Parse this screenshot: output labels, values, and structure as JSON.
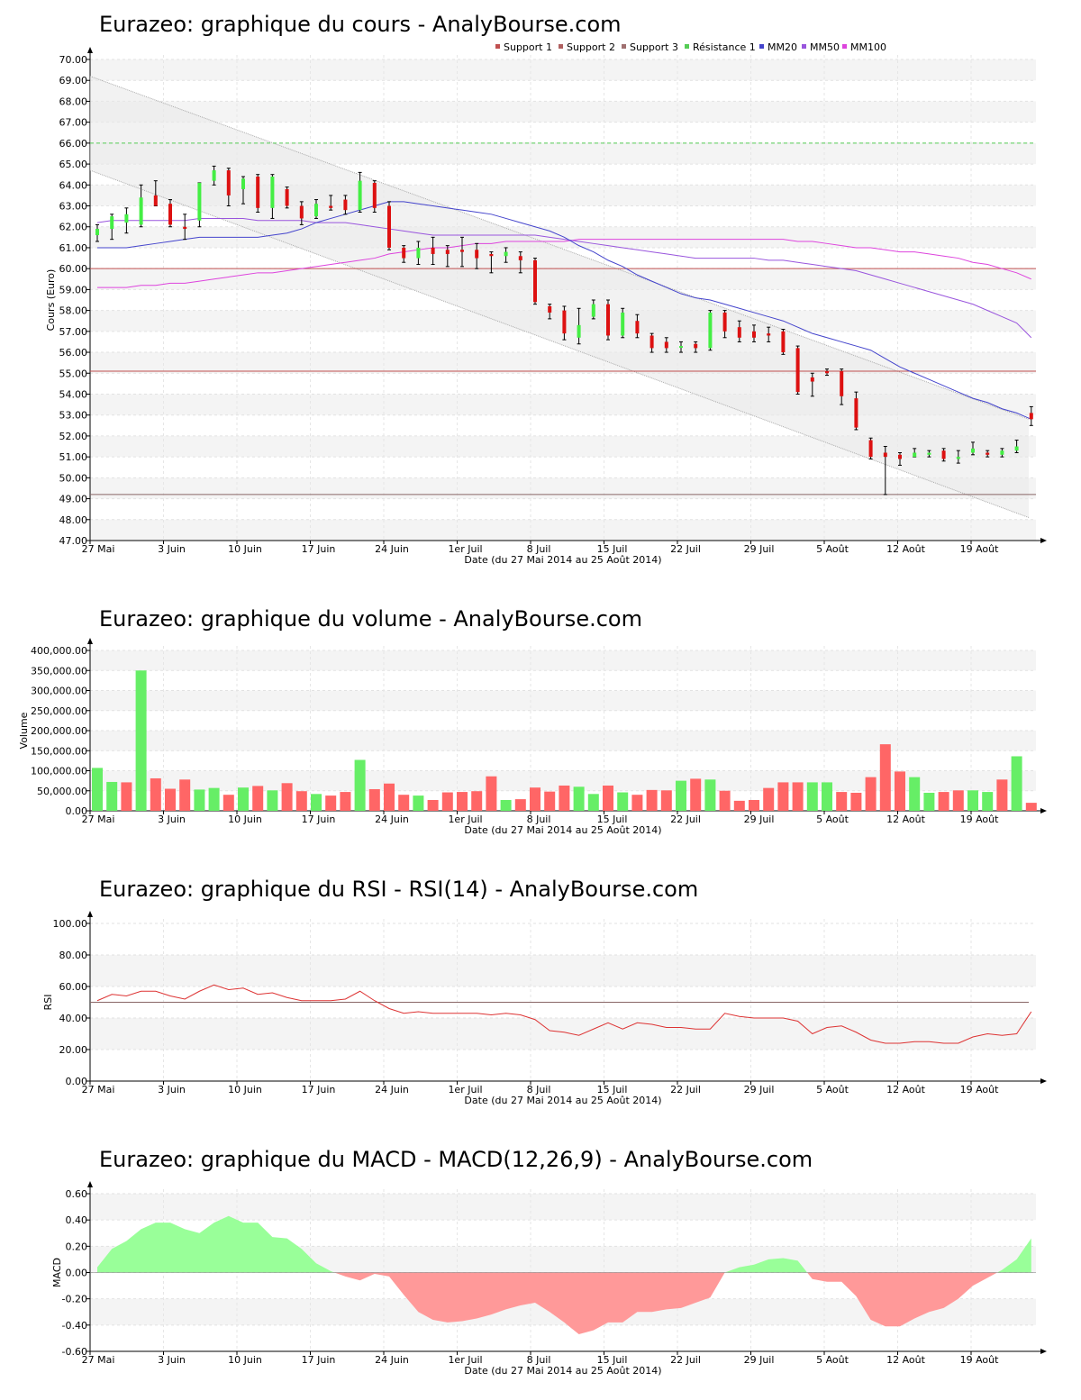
{
  "x_ticks": [
    "27 Mai",
    "3 Juin",
    "10 Juin",
    "17 Juin",
    "24 Juin",
    "1er Juil",
    "8 Juil",
    "15 Juil",
    "22 Juil",
    "29 Juil",
    "5 Août",
    "12 Août",
    "19 Août"
  ],
  "x_axis_label": "Date (du 27 Mai 2014 au 25 Août 2014)",
  "colors": {
    "up": "#44ee44",
    "down": "#dd1111",
    "support": "#c05050",
    "resistance": "#55cc55",
    "mm20": "#4444cc",
    "mm50": "#9955dd",
    "mm100": "#dd44dd",
    "rsi": "#dd3333",
    "macd_pos": "#99ff99",
    "macd_neg": "#ff9999",
    "vol_up": "#66ee66",
    "vol_down": "#ff6666"
  },
  "chart_data": [
    {
      "type": "candlestick",
      "title": "Eurazeo: graphique du cours - AnalyBourse.com",
      "ylabel": "Cours (Euro)",
      "ylim": [
        47,
        70
      ],
      "legend_position": "top-right",
      "legend": [
        "Support 1",
        "Support 2",
        "Support 3",
        "Résistance 1",
        "MM20",
        "MM50",
        "MM100"
      ],
      "levels": {
        "support_1": 60.0,
        "support_2": 55.1,
        "support_3": 49.2,
        "resistance_1": 66.0
      },
      "ohlc": [
        [
          61.6,
          61.9,
          61.3,
          62.1
        ],
        [
          61.9,
          62.5,
          61.4,
          62.6
        ],
        [
          62.2,
          62.6,
          61.7,
          62.9
        ],
        [
          62.1,
          63.4,
          62.0,
          64.0
        ],
        [
          63.5,
          63.0,
          63.0,
          64.2
        ],
        [
          63.1,
          62.1,
          62.0,
          63.3
        ],
        [
          62.0,
          61.9,
          61.4,
          62.6
        ],
        [
          62.3,
          64.1,
          62.0,
          64.1
        ],
        [
          64.2,
          64.7,
          64.0,
          64.9
        ],
        [
          64.7,
          63.5,
          63.0,
          64.8
        ],
        [
          63.8,
          64.3,
          63.1,
          64.4
        ],
        [
          64.4,
          62.9,
          62.7,
          64.5
        ],
        [
          62.9,
          64.4,
          62.4,
          64.5
        ],
        [
          63.8,
          63.0,
          62.9,
          63.9
        ],
        [
          63.0,
          62.4,
          62.1,
          63.2
        ],
        [
          62.5,
          63.1,
          62.4,
          63.3
        ],
        [
          63.0,
          62.9,
          62.8,
          63.5
        ],
        [
          63.3,
          62.8,
          62.6,
          63.5
        ],
        [
          62.8,
          64.2,
          62.7,
          64.6
        ],
        [
          64.1,
          62.9,
          62.7,
          64.2
        ],
        [
          63.0,
          61.0,
          60.9,
          63.2
        ],
        [
          61.0,
          60.5,
          60.3,
          61.1
        ],
        [
          60.5,
          61.0,
          60.2,
          61.3
        ],
        [
          61.0,
          60.7,
          60.2,
          61.5
        ],
        [
          60.9,
          60.7,
          60.1,
          61.1
        ],
        [
          60.9,
          60.8,
          60.1,
          61.5
        ],
        [
          60.9,
          60.5,
          60.0,
          61.2
        ],
        [
          60.7,
          60.6,
          59.8,
          60.8
        ],
        [
          60.6,
          60.8,
          60.3,
          61.0
        ],
        [
          60.6,
          60.4,
          59.8,
          60.8
        ],
        [
          60.4,
          58.4,
          58.3,
          60.5
        ],
        [
          58.2,
          57.9,
          57.6,
          58.3
        ],
        [
          58.0,
          56.9,
          56.6,
          58.2
        ],
        [
          56.7,
          57.3,
          56.4,
          58.1
        ],
        [
          57.7,
          58.3,
          57.6,
          58.5
        ],
        [
          58.3,
          56.8,
          56.6,
          58.5
        ],
        [
          56.8,
          57.9,
          56.7,
          58.1
        ],
        [
          57.5,
          56.9,
          56.7,
          57.8
        ],
        [
          56.8,
          56.2,
          56.0,
          56.9
        ],
        [
          56.5,
          56.2,
          56.0,
          56.7
        ],
        [
          56.3,
          56.3,
          56.0,
          56.5
        ],
        [
          56.4,
          56.2,
          56.0,
          56.5
        ],
        [
          56.2,
          57.9,
          56.1,
          58.0
        ],
        [
          57.9,
          57.0,
          56.7,
          58.0
        ],
        [
          57.2,
          56.7,
          56.5,
          57.5
        ],
        [
          57.0,
          56.7,
          56.5,
          57.3
        ],
        [
          56.9,
          56.8,
          56.5,
          57.2
        ],
        [
          57.0,
          56.0,
          55.9,
          57.1
        ],
        [
          56.2,
          54.1,
          54.0,
          56.3
        ],
        [
          54.8,
          54.6,
          53.9,
          55.0
        ],
        [
          55.1,
          55.0,
          54.9,
          55.2
        ],
        [
          55.1,
          53.9,
          53.5,
          55.2
        ],
        [
          53.8,
          52.4,
          52.3,
          54.1
        ],
        [
          51.8,
          51.0,
          50.9,
          51.9
        ],
        [
          51.2,
          51.0,
          49.2,
          51.5
        ],
        [
          51.1,
          50.9,
          50.6,
          51.2
        ],
        [
          51.0,
          51.2,
          51.0,
          51.4
        ],
        [
          51.1,
          51.2,
          51.0,
          51.3
        ],
        [
          51.3,
          50.9,
          50.8,
          51.4
        ],
        [
          50.9,
          51.0,
          50.7,
          51.3
        ],
        [
          51.2,
          51.4,
          51.1,
          51.7
        ],
        [
          51.2,
          51.1,
          51.0,
          51.3
        ],
        [
          51.1,
          51.3,
          51.0,
          51.4
        ],
        [
          51.3,
          51.5,
          51.2,
          51.8
        ],
        [
          53.1,
          52.8,
          52.5,
          53.4
        ]
      ],
      "mm20": [
        61.0,
        61.0,
        61.0,
        61.1,
        61.2,
        61.3,
        61.4,
        61.5,
        61.5,
        61.5,
        61.5,
        61.5,
        61.6,
        61.7,
        61.9,
        62.2,
        62.4,
        62.6,
        62.8,
        63.0,
        63.2,
        63.2,
        63.1,
        63.0,
        62.9,
        62.8,
        62.7,
        62.6,
        62.4,
        62.2,
        62.0,
        61.8,
        61.5,
        61.1,
        60.8,
        60.4,
        60.1,
        59.7,
        59.4,
        59.1,
        58.8,
        58.6,
        58.5,
        58.3,
        58.1,
        57.9,
        57.7,
        57.5,
        57.2,
        56.9,
        56.7,
        56.5,
        56.3,
        56.1,
        55.7,
        55.3,
        55.0,
        54.7,
        54.4,
        54.1,
        53.8,
        53.6,
        53.3,
        53.1,
        52.8
      ],
      "mm50": [
        62.2,
        62.3,
        62.3,
        62.3,
        62.3,
        62.3,
        62.3,
        62.4,
        62.4,
        62.4,
        62.4,
        62.3,
        62.3,
        62.3,
        62.3,
        62.2,
        62.2,
        62.2,
        62.1,
        62.0,
        61.9,
        61.8,
        61.7,
        61.6,
        61.6,
        61.6,
        61.6,
        61.6,
        61.6,
        61.6,
        61.6,
        61.5,
        61.4,
        61.3,
        61.2,
        61.1,
        61.0,
        60.9,
        60.8,
        60.7,
        60.6,
        60.5,
        60.5,
        60.5,
        60.5,
        60.5,
        60.4,
        60.4,
        60.3,
        60.2,
        60.1,
        60.0,
        59.9,
        59.7,
        59.5,
        59.3,
        59.1,
        58.9,
        58.7,
        58.5,
        58.3,
        58.0,
        57.7,
        57.4,
        56.7
      ],
      "mm100": [
        59.1,
        59.1,
        59.1,
        59.2,
        59.2,
        59.3,
        59.3,
        59.4,
        59.5,
        59.6,
        59.7,
        59.8,
        59.8,
        59.9,
        60.0,
        60.1,
        60.2,
        60.3,
        60.4,
        60.5,
        60.7,
        60.8,
        60.9,
        61.0,
        61.0,
        61.1,
        61.2,
        61.2,
        61.3,
        61.3,
        61.3,
        61.3,
        61.3,
        61.4,
        61.4,
        61.4,
        61.4,
        61.4,
        61.4,
        61.4,
        61.4,
        61.4,
        61.4,
        61.4,
        61.4,
        61.4,
        61.4,
        61.4,
        61.3,
        61.3,
        61.2,
        61.1,
        61.0,
        61.0,
        60.9,
        60.8,
        60.8,
        60.7,
        60.6,
        60.5,
        60.3,
        60.2,
        60.0,
        59.8,
        59.5
      ],
      "channel": {
        "upper": [
          69.2,
          52.8
        ],
        "lower": [
          64.7,
          48.1
        ]
      }
    },
    {
      "type": "bar",
      "title": "Eurazeo: graphique du volume - AnalyBourse.com",
      "ylabel": "Volume",
      "ylim": [
        0,
        400000
      ],
      "values": [
        107000,
        72000,
        71000,
        350000,
        81000,
        55000,
        78000,
        53000,
        57000,
        40000,
        58000,
        62000,
        51000,
        69000,
        49000,
        42000,
        38000,
        47000,
        127000,
        54000,
        68000,
        40000,
        38000,
        27000,
        46000,
        47000,
        49000,
        86000,
        27000,
        29000,
        58000,
        48000,
        63000,
        60000,
        42000,
        63000,
        46000,
        40000,
        52000,
        51000,
        75000,
        80000,
        78000,
        50000,
        25000,
        27000,
        57000,
        71000,
        71000,
        71000,
        71000,
        47000,
        45000,
        84000,
        166000,
        98000,
        84000,
        45000,
        47000,
        51000,
        51000,
        47000,
        78000,
        136000,
        20000
      ],
      "up": [
        1,
        1,
        0,
        1,
        0,
        0,
        0,
        1,
        1,
        0,
        1,
        0,
        1,
        0,
        0,
        1,
        0,
        0,
        1,
        0,
        0,
        0,
        1,
        0,
        0,
        0,
        0,
        0,
        1,
        0,
        0,
        0,
        0,
        1,
        1,
        0,
        1,
        0,
        0,
        0,
        1,
        0,
        1,
        0,
        0,
        0,
        0,
        0,
        0,
        1,
        1,
        0,
        0,
        0,
        0,
        0,
        1,
        1,
        0,
        0,
        1,
        1,
        0,
        1,
        0
      ]
    },
    {
      "type": "line",
      "title": "Eurazeo: graphique du RSI - RSI(14) - AnalyBourse.com",
      "ylabel": "RSI",
      "ylim": [
        0,
        100
      ],
      "reference_line": 50,
      "values": [
        51,
        55,
        54,
        57,
        57,
        54,
        52,
        57,
        61,
        58,
        59,
        55,
        56,
        53,
        51,
        51,
        51,
        52,
        57,
        51,
        46,
        43,
        44,
        43,
        43,
        43,
        43,
        42,
        43,
        42,
        39,
        32,
        31,
        29,
        33,
        37,
        33,
        37,
        36,
        34,
        34,
        33,
        33,
        43,
        41,
        40,
        40,
        40,
        38,
        30,
        34,
        35,
        31,
        26,
        24,
        24,
        25,
        25,
        24,
        24,
        28,
        30,
        29,
        30,
        44
      ]
    },
    {
      "type": "area",
      "title": "Eurazeo: graphique du MACD - MACD(12,26,9) - AnalyBourse.com",
      "ylabel": "MACD",
      "ylim": [
        -0.6,
        0.6
      ],
      "values": [
        0.04,
        0.18,
        0.24,
        0.33,
        0.38,
        0.38,
        0.33,
        0.3,
        0.38,
        0.43,
        0.38,
        0.38,
        0.27,
        0.26,
        0.18,
        0.07,
        0.01,
        -0.03,
        -0.06,
        -0.01,
        -0.03,
        -0.17,
        -0.3,
        -0.36,
        -0.38,
        -0.37,
        -0.35,
        -0.32,
        -0.28,
        -0.25,
        -0.23,
        -0.3,
        -0.38,
        -0.47,
        -0.44,
        -0.38,
        -0.38,
        -0.3,
        -0.3,
        -0.28,
        -0.27,
        -0.23,
        -0.19,
        0.0,
        0.04,
        0.06,
        0.1,
        0.11,
        0.09,
        -0.05,
        -0.07,
        -0.07,
        -0.18,
        -0.36,
        -0.41,
        -0.41,
        -0.35,
        -0.3,
        -0.27,
        -0.2,
        -0.1,
        -0.04,
        0.02,
        0.1,
        0.26
      ]
    }
  ]
}
